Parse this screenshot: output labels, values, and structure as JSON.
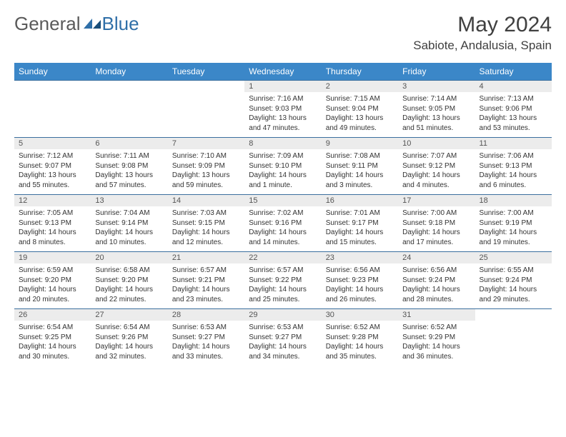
{
  "brand": {
    "part1": "General",
    "part2": "Blue"
  },
  "title": "May 2024",
  "location": "Sabiote, Andalusia, Spain",
  "colors": {
    "header_bg": "#3b87c8",
    "header_text": "#ffffff",
    "row_border": "#3b6f9e",
    "daynum_bg": "#ececec",
    "text": "#333333",
    "brand_blue": "#2f6fa8",
    "brand_gray": "#5a5a5a"
  },
  "weekdays": [
    "Sunday",
    "Monday",
    "Tuesday",
    "Wednesday",
    "Thursday",
    "Friday",
    "Saturday"
  ],
  "weeks": [
    [
      null,
      null,
      null,
      {
        "n": "1",
        "sr": "7:16 AM",
        "ss": "9:03 PM",
        "dl": "13 hours and 47 minutes."
      },
      {
        "n": "2",
        "sr": "7:15 AM",
        "ss": "9:04 PM",
        "dl": "13 hours and 49 minutes."
      },
      {
        "n": "3",
        "sr": "7:14 AM",
        "ss": "9:05 PM",
        "dl": "13 hours and 51 minutes."
      },
      {
        "n": "4",
        "sr": "7:13 AM",
        "ss": "9:06 PM",
        "dl": "13 hours and 53 minutes."
      }
    ],
    [
      {
        "n": "5",
        "sr": "7:12 AM",
        "ss": "9:07 PM",
        "dl": "13 hours and 55 minutes."
      },
      {
        "n": "6",
        "sr": "7:11 AM",
        "ss": "9:08 PM",
        "dl": "13 hours and 57 minutes."
      },
      {
        "n": "7",
        "sr": "7:10 AM",
        "ss": "9:09 PM",
        "dl": "13 hours and 59 minutes."
      },
      {
        "n": "8",
        "sr": "7:09 AM",
        "ss": "9:10 PM",
        "dl": "14 hours and 1 minute."
      },
      {
        "n": "9",
        "sr": "7:08 AM",
        "ss": "9:11 PM",
        "dl": "14 hours and 3 minutes."
      },
      {
        "n": "10",
        "sr": "7:07 AM",
        "ss": "9:12 PM",
        "dl": "14 hours and 4 minutes."
      },
      {
        "n": "11",
        "sr": "7:06 AM",
        "ss": "9:13 PM",
        "dl": "14 hours and 6 minutes."
      }
    ],
    [
      {
        "n": "12",
        "sr": "7:05 AM",
        "ss": "9:13 PM",
        "dl": "14 hours and 8 minutes."
      },
      {
        "n": "13",
        "sr": "7:04 AM",
        "ss": "9:14 PM",
        "dl": "14 hours and 10 minutes."
      },
      {
        "n": "14",
        "sr": "7:03 AM",
        "ss": "9:15 PM",
        "dl": "14 hours and 12 minutes."
      },
      {
        "n": "15",
        "sr": "7:02 AM",
        "ss": "9:16 PM",
        "dl": "14 hours and 14 minutes."
      },
      {
        "n": "16",
        "sr": "7:01 AM",
        "ss": "9:17 PM",
        "dl": "14 hours and 15 minutes."
      },
      {
        "n": "17",
        "sr": "7:00 AM",
        "ss": "9:18 PM",
        "dl": "14 hours and 17 minutes."
      },
      {
        "n": "18",
        "sr": "7:00 AM",
        "ss": "9:19 PM",
        "dl": "14 hours and 19 minutes."
      }
    ],
    [
      {
        "n": "19",
        "sr": "6:59 AM",
        "ss": "9:20 PM",
        "dl": "14 hours and 20 minutes."
      },
      {
        "n": "20",
        "sr": "6:58 AM",
        "ss": "9:20 PM",
        "dl": "14 hours and 22 minutes."
      },
      {
        "n": "21",
        "sr": "6:57 AM",
        "ss": "9:21 PM",
        "dl": "14 hours and 23 minutes."
      },
      {
        "n": "22",
        "sr": "6:57 AM",
        "ss": "9:22 PM",
        "dl": "14 hours and 25 minutes."
      },
      {
        "n": "23",
        "sr": "6:56 AM",
        "ss": "9:23 PM",
        "dl": "14 hours and 26 minutes."
      },
      {
        "n": "24",
        "sr": "6:56 AM",
        "ss": "9:24 PM",
        "dl": "14 hours and 28 minutes."
      },
      {
        "n": "25",
        "sr": "6:55 AM",
        "ss": "9:24 PM",
        "dl": "14 hours and 29 minutes."
      }
    ],
    [
      {
        "n": "26",
        "sr": "6:54 AM",
        "ss": "9:25 PM",
        "dl": "14 hours and 30 minutes."
      },
      {
        "n": "27",
        "sr": "6:54 AM",
        "ss": "9:26 PM",
        "dl": "14 hours and 32 minutes."
      },
      {
        "n": "28",
        "sr": "6:53 AM",
        "ss": "9:27 PM",
        "dl": "14 hours and 33 minutes."
      },
      {
        "n": "29",
        "sr": "6:53 AM",
        "ss": "9:27 PM",
        "dl": "14 hours and 34 minutes."
      },
      {
        "n": "30",
        "sr": "6:52 AM",
        "ss": "9:28 PM",
        "dl": "14 hours and 35 minutes."
      },
      {
        "n": "31",
        "sr": "6:52 AM",
        "ss": "9:29 PM",
        "dl": "14 hours and 36 minutes."
      },
      null
    ]
  ],
  "labels": {
    "sunrise": "Sunrise:",
    "sunset": "Sunset:",
    "daylight": "Daylight:"
  }
}
